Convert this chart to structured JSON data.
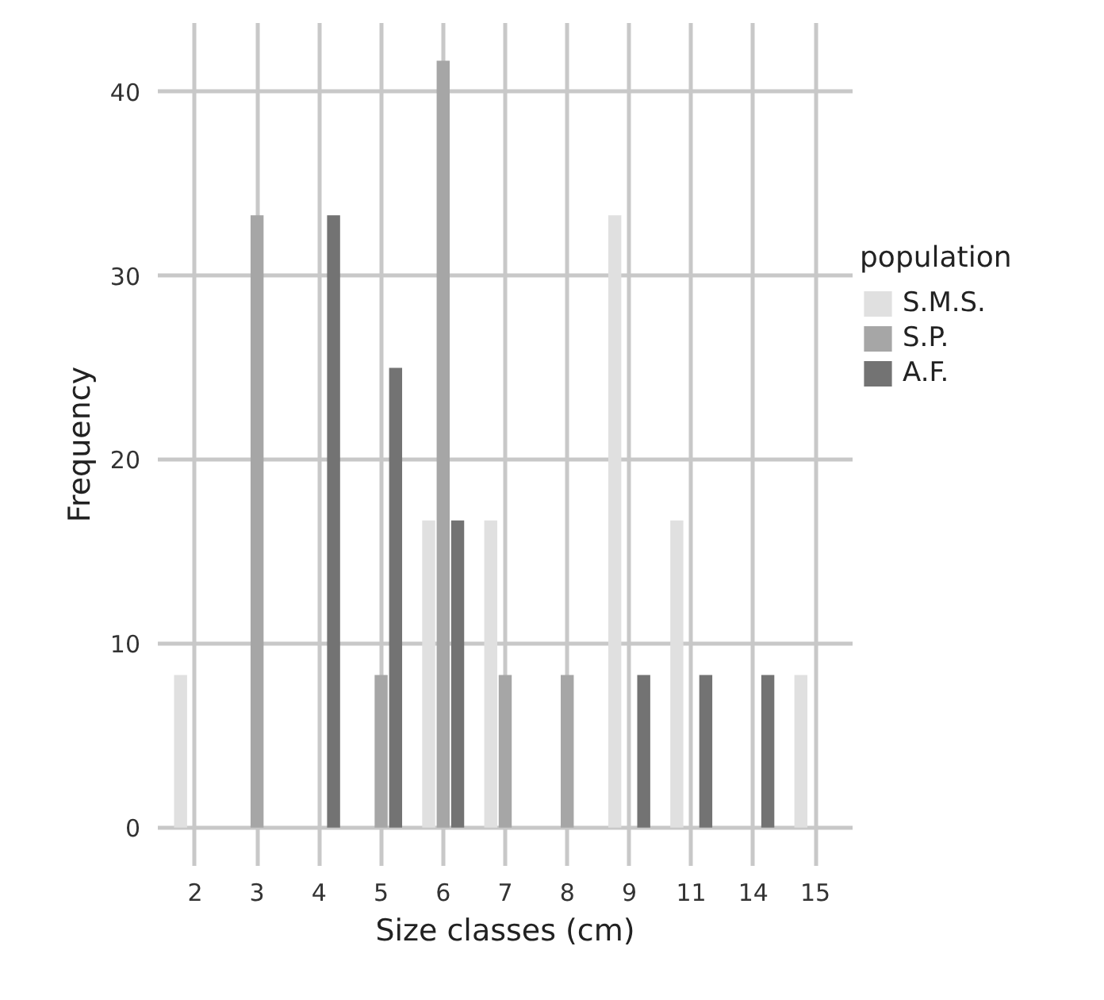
{
  "chart_data": {
    "type": "bar",
    "xlabel": "Size classes (cm)",
    "ylabel": "Frequency",
    "legend_title": "population",
    "categories": [
      "2",
      "3",
      "4",
      "5",
      "6",
      "7",
      "8",
      "9",
      "11",
      "14",
      "15"
    ],
    "series": [
      {
        "name": "S.M.S.",
        "color": "#e0e0e0",
        "values": [
          8.3,
          null,
          null,
          null,
          16.7,
          16.7,
          null,
          33.3,
          16.7,
          null,
          8.3
        ]
      },
      {
        "name": "S.P.",
        "color": "#a6a6a6",
        "values": [
          null,
          33.3,
          null,
          8.3,
          41.7,
          8.3,
          8.3,
          null,
          null,
          null,
          null
        ]
      },
      {
        "name": "A.F.",
        "color": "#737373",
        "values": [
          null,
          null,
          33.3,
          25,
          16.7,
          null,
          null,
          8.3,
          8.3,
          8.3,
          null
        ]
      }
    ],
    "ylim": [
      -2.08,
      43.75
    ],
    "yticks": [
      0,
      10,
      20,
      30,
      40
    ],
    "grid": true,
    "legend": "right"
  }
}
